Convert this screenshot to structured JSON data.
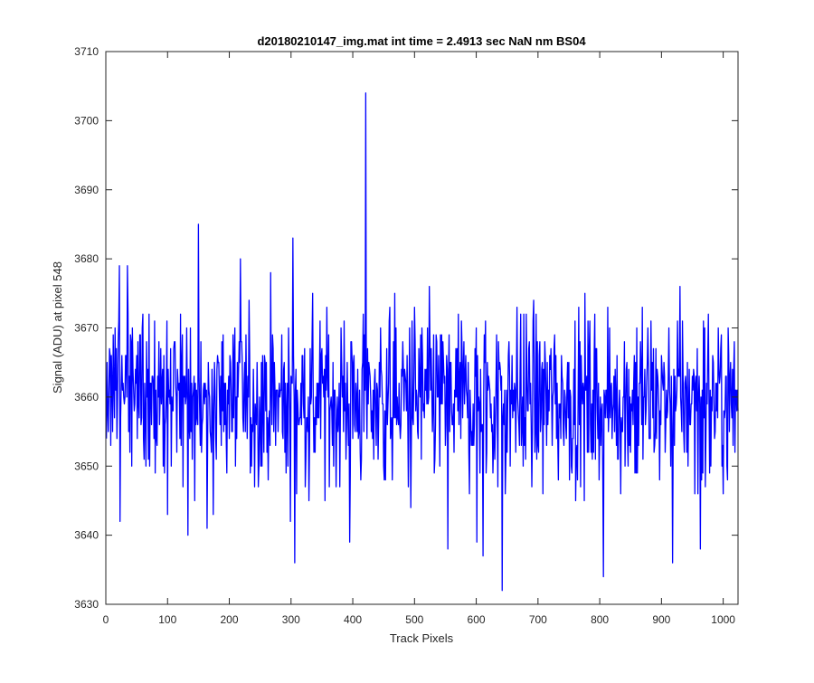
{
  "chart_data": {
    "type": "line",
    "title": "d20180210147_img.mat int time = 2.4913 sec  NaN nm BS04",
    "xlabel": "Track Pixels",
    "ylabel": "Signal (ADU) at pixel 548",
    "xlim": [
      0,
      1024
    ],
    "ylim": [
      3630,
      3710
    ],
    "x_ticks": [
      0,
      100,
      200,
      300,
      400,
      500,
      600,
      700,
      800,
      900,
      1000
    ],
    "y_ticks": [
      3630,
      3640,
      3650,
      3660,
      3670,
      3680,
      3690,
      3700,
      3710
    ],
    "grid": false,
    "legend": "none",
    "line_color": "#0000ff",
    "series": [
      {
        "x_start": 1,
        "x_step": 1,
        "count": 1024,
        "mean": 3659.6,
        "min": 3632,
        "max": 3704,
        "values_sample": [
          {
            "x": 22,
            "y": 3679
          },
          {
            "x": 23,
            "y": 3642
          },
          {
            "x": 35,
            "y": 3679
          },
          {
            "x": 133,
            "y": 3640
          },
          {
            "x": 150,
            "y": 3685
          },
          {
            "x": 218,
            "y": 3680
          },
          {
            "x": 299,
            "y": 3642
          },
          {
            "x": 303,
            "y": 3683
          },
          {
            "x": 306,
            "y": 3636
          },
          {
            "x": 395,
            "y": 3639
          },
          {
            "x": 421,
            "y": 3704
          },
          {
            "x": 554,
            "y": 3638
          },
          {
            "x": 601,
            "y": 3639
          },
          {
            "x": 611,
            "y": 3637
          },
          {
            "x": 642,
            "y": 3632
          },
          {
            "x": 806,
            "y": 3634
          },
          {
            "x": 918,
            "y": 3636
          },
          {
            "x": 963,
            "y": 3638
          }
        ]
      }
    ]
  }
}
